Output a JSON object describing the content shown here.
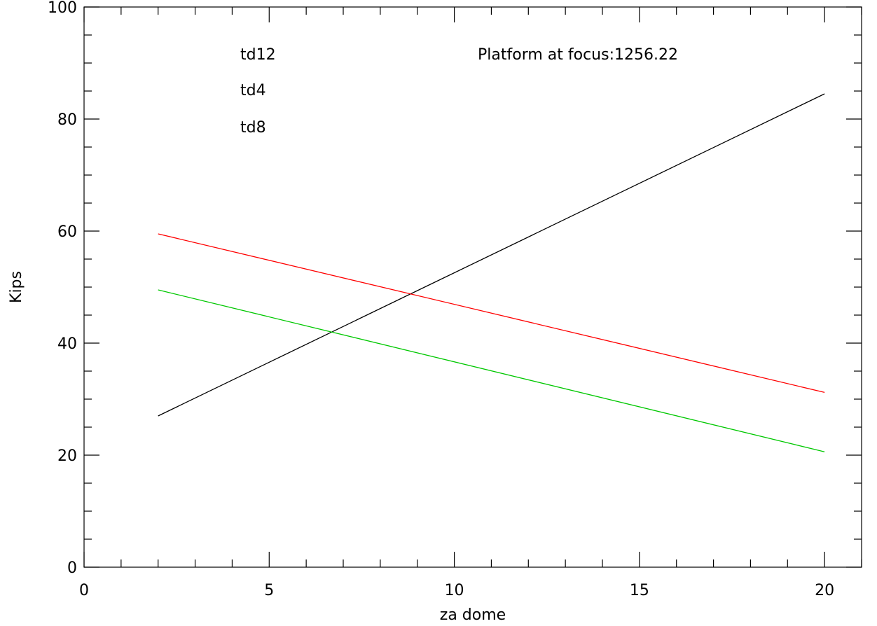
{
  "chart_data": {
    "type": "line",
    "title": "",
    "xlabel": "za dome",
    "ylabel": "Kips",
    "xlim": [
      0,
      21
    ],
    "ylim": [
      0,
      100
    ],
    "x_major_ticks": [
      0,
      5,
      10,
      15,
      20
    ],
    "x_tick_labels": [
      "0",
      "5",
      "10",
      "15",
      "20"
    ],
    "y_major_ticks": [
      0,
      20,
      40,
      60,
      80,
      100
    ],
    "y_tick_labels": [
      "0",
      "20",
      "40",
      "60",
      "80",
      "100"
    ],
    "grid": false,
    "legend_placement": "top-left",
    "annotation": "Platform at focus:1256.22",
    "series": [
      {
        "name": "td12",
        "color": "#000000",
        "x": [
          2,
          20
        ],
        "y": [
          27.0,
          84.5
        ]
      },
      {
        "name": "td4",
        "color": "#ff0000",
        "x": [
          2,
          20
        ],
        "y": [
          59.5,
          31.2
        ]
      },
      {
        "name": "td8",
        "color": "#00c800",
        "x": [
          2,
          20
        ],
        "y": [
          49.5,
          20.6
        ]
      }
    ]
  }
}
